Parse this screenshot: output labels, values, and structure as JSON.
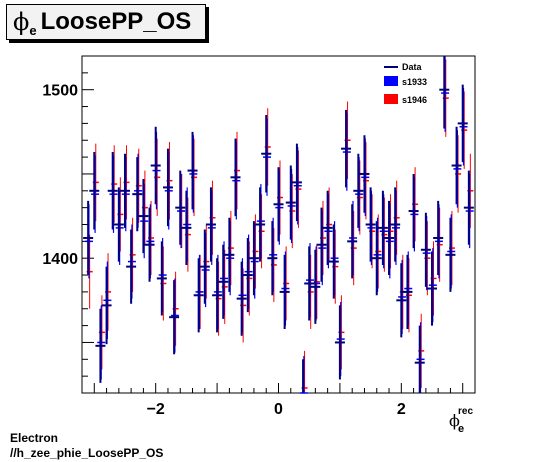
{
  "title": {
    "symbol": "ϕ",
    "subscript": "e",
    "text": "LoosePP_OS"
  },
  "footer": {
    "line1": "Electron",
    "line2": "//h_zee_phie_LoosePP_OS"
  },
  "axis": {
    "x_symbol": "ϕ",
    "x_sub": "e",
    "x_sup": "rec"
  },
  "colors": {
    "data": "#000080",
    "s1933": "#0000ff",
    "s1946": "#ff0000"
  },
  "chart_data": {
    "type": "scatter",
    "xlim": [
      -3.2,
      3.2
    ],
    "ylim": [
      1320,
      1520
    ],
    "xticks": [
      -2,
      0,
      2
    ],
    "yticks": [
      1400,
      1500
    ],
    "grid": false,
    "legend_position": "top-right",
    "legend": [
      "Data",
      "s1933",
      "s1946"
    ],
    "series": [
      {
        "name": "Data",
        "x": [
          -3.1,
          -3.0,
          -2.9,
          -2.8,
          -2.7,
          -2.6,
          -2.5,
          -2.4,
          -2.3,
          -2.2,
          -2.1,
          -2.0,
          -1.9,
          -1.8,
          -1.7,
          -1.6,
          -1.5,
          -1.4,
          -1.3,
          -1.2,
          -1.1,
          -1.0,
          -0.9,
          -0.8,
          -0.7,
          -0.6,
          -0.5,
          -0.4,
          -0.3,
          -0.2,
          -0.1,
          0.0,
          0.1,
          0.2,
          0.3,
          0.4,
          0.5,
          0.6,
          0.7,
          0.8,
          0.9,
          1.0,
          1.1,
          1.2,
          1.3,
          1.4,
          1.5,
          1.6,
          1.7,
          1.8,
          1.9,
          2.0,
          2.1,
          2.2,
          2.3,
          2.4,
          2.5,
          2.6,
          2.7,
          2.8,
          2.9,
          3.0,
          3.1
        ],
        "y": [
          1412,
          1440,
          1348,
          1372,
          1440,
          1420,
          1440,
          1395,
          1438,
          1425,
          1408,
          1455,
          1388,
          1442,
          1365,
          1430,
          1418,
          1452,
          1378,
          1395,
          1420,
          1378,
          1386,
          1402,
          1448,
          1376,
          1390,
          1400,
          1420,
          1462,
          1400,
          1432,
          1380,
          1433,
          1445,
          1318,
          1385,
          1383,
          1408,
          1418,
          1398,
          1350,
          1465,
          1410,
          1440,
          1450,
          1420,
          1400,
          1418,
          1412,
          1420,
          1375,
          1380,
          1428,
          1338,
          1405,
          1382,
          1412,
          1500,
          1402,
          1455,
          1480,
          1430
        ],
        "yerr": [
          22,
          23,
          22,
          23,
          23,
          22,
          22,
          22,
          22,
          22,
          22,
          23,
          22,
          23,
          22,
          22,
          22,
          23,
          22,
          22,
          22,
          22,
          22,
          22,
          23,
          22,
          22,
          22,
          22,
          23,
          22,
          22,
          22,
          22,
          23,
          22,
          22,
          22,
          22,
          22,
          22,
          22,
          23,
          22,
          22,
          23,
          22,
          22,
          22,
          22,
          22,
          22,
          22,
          22,
          22,
          22,
          22,
          22,
          23,
          22,
          23,
          23,
          22
        ]
      },
      {
        "name": "s1933",
        "x": [
          -3.1,
          -3.0,
          -2.9,
          -2.8,
          -2.7,
          -2.6,
          -2.5,
          -2.4,
          -2.3,
          -2.2,
          -2.1,
          -2.0,
          -1.9,
          -1.8,
          -1.7,
          -1.6,
          -1.5,
          -1.4,
          -1.3,
          -1.2,
          -1.1,
          -1.0,
          -0.9,
          -0.8,
          -0.7,
          -0.6,
          -0.5,
          -0.4,
          -0.3,
          -0.2,
          -0.1,
          0.0,
          0.1,
          0.2,
          0.3,
          0.4,
          0.5,
          0.6,
          0.7,
          0.8,
          0.9,
          1.0,
          1.1,
          1.2,
          1.3,
          1.4,
          1.5,
          1.6,
          1.7,
          1.8,
          1.9,
          2.0,
          2.1,
          2.2,
          2.3,
          2.4,
          2.5,
          2.6,
          2.7,
          2.8,
          2.9,
          3.0,
          3.1
        ],
        "y": [
          1410,
          1438,
          1350,
          1375,
          1438,
          1418,
          1438,
          1398,
          1440,
          1422,
          1410,
          1452,
          1390,
          1440,
          1366,
          1428,
          1420,
          1450,
          1380,
          1393,
          1418,
          1380,
          1388,
          1400,
          1446,
          1378,
          1392,
          1398,
          1422,
          1460,
          1402,
          1430,
          1382,
          1431,
          1443,
          1320,
          1387,
          1385,
          1406,
          1416,
          1400,
          1352,
          1463,
          1412,
          1438,
          1448,
          1418,
          1402,
          1416,
          1410,
          1418,
          1377,
          1382,
          1426,
          1340,
          1403,
          1384,
          1410,
          1498,
          1404,
          1453,
          1478,
          1428
        ]
      },
      {
        "name": "s1946",
        "x": [
          -3.1,
          -3.0,
          -2.9,
          -2.8,
          -2.7,
          -2.6,
          -2.5,
          -2.4,
          -2.3,
          -2.2,
          -2.1,
          -2.0,
          -1.9,
          -1.8,
          -1.7,
          -1.6,
          -1.5,
          -1.4,
          -1.3,
          -1.2,
          -1.1,
          -1.0,
          -0.9,
          -0.8,
          -0.7,
          -0.6,
          -0.5,
          -0.4,
          -0.3,
          -0.2,
          -0.1,
          0.0,
          0.1,
          0.2,
          0.3,
          0.4,
          0.5,
          0.6,
          0.7,
          0.8,
          0.9,
          1.0,
          1.1,
          1.2,
          1.3,
          1.4,
          1.5,
          1.6,
          1.7,
          1.8,
          1.9,
          2.0,
          2.1,
          2.2,
          2.3,
          2.4,
          2.5,
          2.6,
          2.7,
          2.8,
          2.9,
          3.0,
          3.1
        ],
        "y": [
          1392,
          1445,
          1356,
          1380,
          1444,
          1426,
          1445,
          1402,
          1443,
          1430,
          1412,
          1448,
          1385,
          1446,
          1370,
          1428,
          1414,
          1448,
          1380,
          1398,
          1424,
          1376,
          1383,
          1406,
          1452,
          1372,
          1388,
          1404,
          1416,
          1466,
          1396,
          1436,
          1385,
          1428,
          1441,
          1323,
          1380,
          1386,
          1412,
          1420,
          1395,
          1356,
          1470,
          1406,
          1436,
          1446,
          1416,
          1404,
          1414,
          1416,
          1424,
          1380,
          1378,
          1432,
          1345,
          1400,
          1388,
          1408,
          1495,
          1406,
          1450,
          1476,
          1440
        ]
      }
    ]
  }
}
